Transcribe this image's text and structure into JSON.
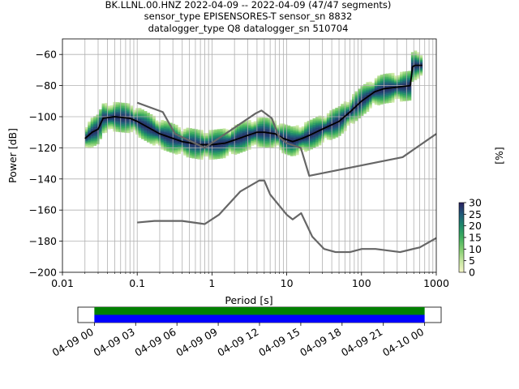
{
  "chart_data": {
    "type": "heatmap",
    "title_lines": [
      "BK.LLNL.00.HNZ   2022-04-09 -- 2022-04-09  (47/47 segments)",
      "sensor_type EPISENSORES-T sensor_sn 8832",
      "datalogger_type Q8 datalogger_sn 510704"
    ],
    "xlabel": "Period [s]",
    "ylabel": "Power [dB]",
    "xscale": "log",
    "xlim": [
      0.01,
      1000
    ],
    "ylim": [
      -200,
      -50
    ],
    "xticks": [
      0.01,
      0.1,
      1,
      10,
      100,
      1000
    ],
    "xtick_labels": [
      "0.01",
      "0.1",
      "1",
      "10",
      "100",
      "1000"
    ],
    "yticks": [
      -200,
      -180,
      -160,
      -140,
      -120,
      -100,
      -80,
      -60
    ],
    "ytick_labels": [
      "−200",
      "−180",
      "−160",
      "−140",
      "−120",
      "−100",
      "−80",
      "−60"
    ],
    "grid": true,
    "colorbar": {
      "label": "[%]",
      "range": [
        0,
        30
      ],
      "ticks": [
        0,
        5,
        10,
        15,
        20,
        25,
        30
      ],
      "tick_labels": [
        "0",
        "5",
        "10",
        "15",
        "20",
        "25",
        "30"
      ],
      "colors": [
        "#f7f7c8",
        "#c4e6a0",
        "#7fcc6e",
        "#3fae5e",
        "#1e8a6a",
        "#205a7a",
        "#2b2060"
      ]
    },
    "series": [
      {
        "role": "mode",
        "color": "#000000",
        "x": [
          0.02,
          0.025,
          0.03,
          0.035,
          0.05,
          0.08,
          0.1,
          0.2,
          0.4,
          0.7,
          1.0,
          1.5,
          2.0,
          3.0,
          4.0,
          5.0,
          7.0,
          9.0,
          12.0,
          16.0,
          20.0,
          30.0,
          50.0,
          70.0,
          100.0,
          150.0,
          200.0,
          300.0,
          450.0,
          480.0,
          520.0,
          650.0
        ],
        "y": [
          -114,
          -110,
          -108,
          -101,
          -100,
          -101,
          -103,
          -111,
          -116,
          -118,
          -118,
          -117,
          -115,
          -112,
          -110,
          -110,
          -111,
          -114,
          -116,
          -114,
          -112,
          -108,
          -103,
          -97,
          -90,
          -84,
          -82,
          -81,
          -80,
          -68,
          -67,
          -67
        ]
      },
      {
        "role": "noise-model-upper",
        "color": "#666666",
        "x": [
          0.1,
          0.22,
          0.32,
          0.8,
          3.8,
          4.6,
          6.3,
          7.9,
          10,
          15.4,
          20,
          354.8,
          1000
        ],
        "y": [
          -91,
          -97,
          -111,
          -120,
          -98,
          -96,
          -101,
          -113,
          -117,
          -120,
          -138,
          -126,
          -111
        ]
      },
      {
        "role": "noise-model-lower",
        "color": "#666666",
        "x": [
          0.1,
          0.17,
          0.4,
          0.8,
          1.24,
          2.4,
          4.3,
          5,
          6,
          10,
          12,
          15.6,
          21.9,
          31.6,
          45,
          70,
          101,
          154,
          328,
          600,
          1000
        ],
        "y": [
          -168,
          -167,
          -167,
          -169,
          -163,
          -148,
          -141,
          -141,
          -150,
          -163,
          -166,
          -162,
          -177,
          -185,
          -187,
          -187,
          -185,
          -185,
          -187,
          -184,
          -178
        ]
      }
    ],
    "time_axis": {
      "tick_labels": [
        "04-09 00",
        "04-09 03",
        "04-09 06",
        "04-09 09",
        "04-09 12",
        "04-09 15",
        "04-09 18",
        "04-09 21",
        "04-10 00"
      ],
      "tick_hours": [
        0,
        3,
        6,
        9,
        12,
        15,
        18,
        21,
        24
      ],
      "range_hours": [
        -1.2,
        25.2
      ],
      "bars": [
        {
          "role": "data-availability",
          "color": "#008000",
          "start_hours": 0,
          "end_hours": 24
        },
        {
          "role": "psd-segments",
          "color": "#0000ff",
          "start_hours": 0,
          "end_hours": 24
        }
      ]
    }
  }
}
